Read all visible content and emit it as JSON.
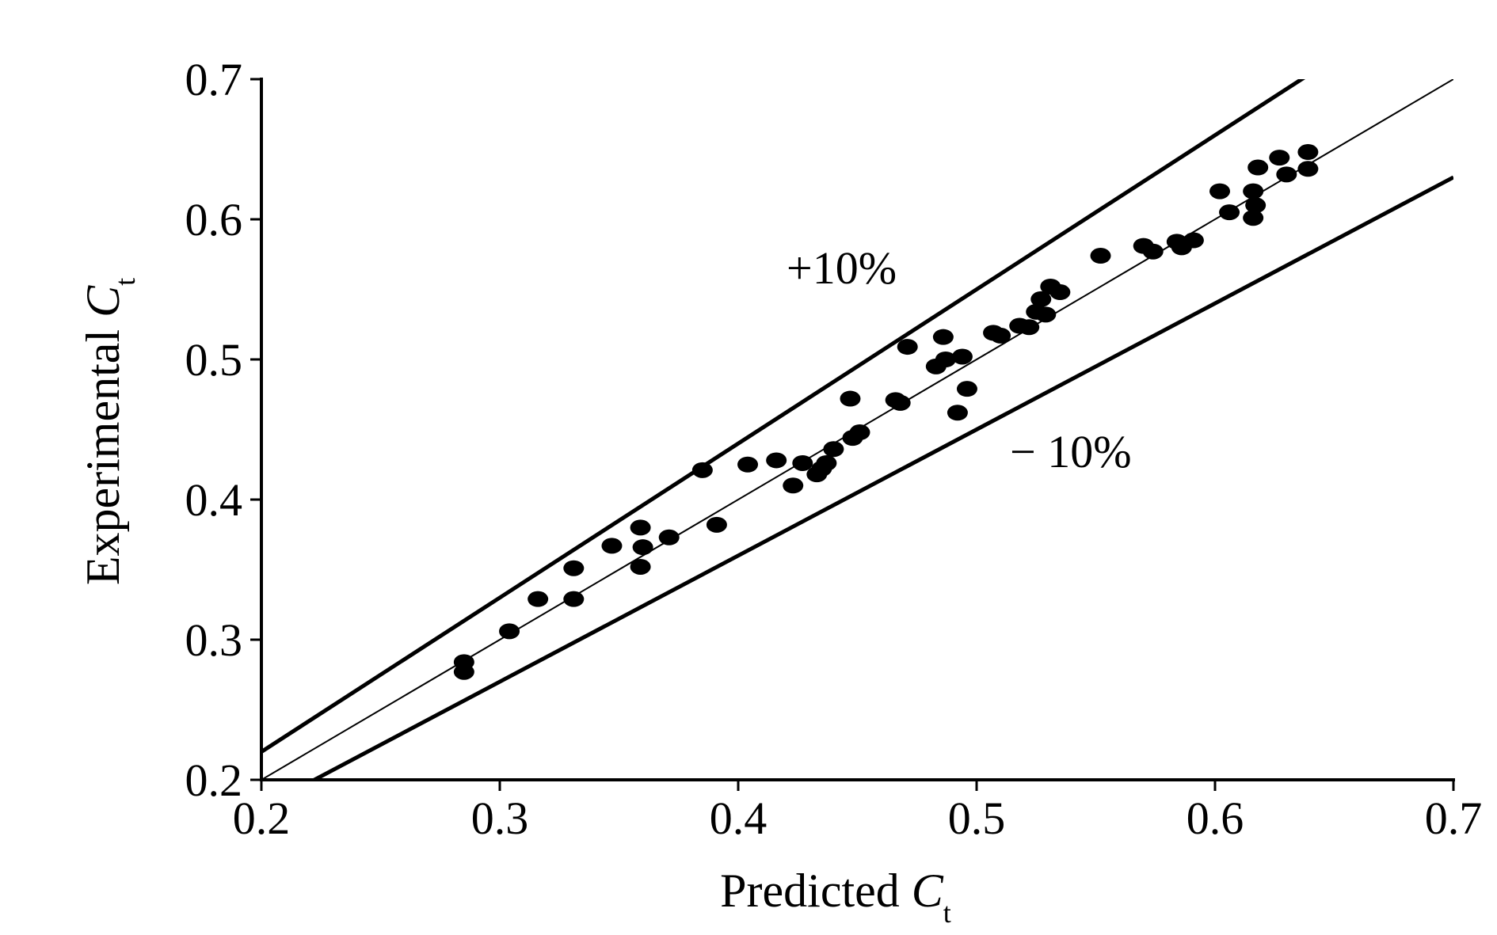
{
  "chart_data": {
    "type": "scatter",
    "title": "",
    "xlabel": {
      "main": "Predicted ",
      "var": "C",
      "sub": "t"
    },
    "ylabel": {
      "main": "Experimental ",
      "var": "C",
      "sub": "t"
    },
    "xlim": [
      0.2,
      0.7
    ],
    "ylim": [
      0.2,
      0.7
    ],
    "xticks": [
      "0.2",
      "0.3",
      "0.4",
      "0.5",
      "0.6",
      "0.7"
    ],
    "yticks": [
      "0.2",
      "0.3",
      "0.4",
      "0.5",
      "0.6",
      "0.7"
    ],
    "grid": false,
    "reference_lines": [
      {
        "label": "+10%",
        "slope": 1.1
      },
      {
        "label": "",
        "slope": 1.0
      },
      {
        "label": "− 10%",
        "slope": 0.9
      }
    ],
    "annotations": [
      "+10%",
      "− 10%"
    ],
    "points": [
      {
        "x": 0.285,
        "y": 0.284
      },
      {
        "x": 0.285,
        "y": 0.277
      },
      {
        "x": 0.304,
        "y": 0.306
      },
      {
        "x": 0.316,
        "y": 0.329
      },
      {
        "x": 0.331,
        "y": 0.351
      },
      {
        "x": 0.331,
        "y": 0.329
      },
      {
        "x": 0.347,
        "y": 0.367
      },
      {
        "x": 0.359,
        "y": 0.38
      },
      {
        "x": 0.36,
        "y": 0.366
      },
      {
        "x": 0.359,
        "y": 0.352
      },
      {
        "x": 0.371,
        "y": 0.373
      },
      {
        "x": 0.385,
        "y": 0.421
      },
      {
        "x": 0.391,
        "y": 0.382
      },
      {
        "x": 0.404,
        "y": 0.425
      },
      {
        "x": 0.416,
        "y": 0.428
      },
      {
        "x": 0.423,
        "y": 0.41
      },
      {
        "x": 0.427,
        "y": 0.426
      },
      {
        "x": 0.433,
        "y": 0.418
      },
      {
        "x": 0.435,
        "y": 0.422
      },
      {
        "x": 0.437,
        "y": 0.426
      },
      {
        "x": 0.44,
        "y": 0.436
      },
      {
        "x": 0.447,
        "y": 0.472
      },
      {
        "x": 0.448,
        "y": 0.444
      },
      {
        "x": 0.451,
        "y": 0.448
      },
      {
        "x": 0.466,
        "y": 0.471
      },
      {
        "x": 0.468,
        "y": 0.469
      },
      {
        "x": 0.471,
        "y": 0.509
      },
      {
        "x": 0.483,
        "y": 0.495
      },
      {
        "x": 0.486,
        "y": 0.516
      },
      {
        "x": 0.487,
        "y": 0.5
      },
      {
        "x": 0.492,
        "y": 0.462
      },
      {
        "x": 0.494,
        "y": 0.502
      },
      {
        "x": 0.496,
        "y": 0.479
      },
      {
        "x": 0.507,
        "y": 0.519
      },
      {
        "x": 0.51,
        "y": 0.517
      },
      {
        "x": 0.518,
        "y": 0.524
      },
      {
        "x": 0.522,
        "y": 0.523
      },
      {
        "x": 0.525,
        "y": 0.534
      },
      {
        "x": 0.527,
        "y": 0.543
      },
      {
        "x": 0.529,
        "y": 0.532
      },
      {
        "x": 0.531,
        "y": 0.552
      },
      {
        "x": 0.535,
        "y": 0.548
      },
      {
        "x": 0.552,
        "y": 0.574
      },
      {
        "x": 0.57,
        "y": 0.581
      },
      {
        "x": 0.574,
        "y": 0.577
      },
      {
        "x": 0.584,
        "y": 0.584
      },
      {
        "x": 0.586,
        "y": 0.58
      },
      {
        "x": 0.591,
        "y": 0.585
      },
      {
        "x": 0.602,
        "y": 0.62
      },
      {
        "x": 0.606,
        "y": 0.605
      },
      {
        "x": 0.616,
        "y": 0.62
      },
      {
        "x": 0.617,
        "y": 0.61
      },
      {
        "x": 0.616,
        "y": 0.601
      },
      {
        "x": 0.618,
        "y": 0.637
      },
      {
        "x": 0.627,
        "y": 0.644
      },
      {
        "x": 0.63,
        "y": 0.632
      },
      {
        "x": 0.639,
        "y": 0.648
      },
      {
        "x": 0.639,
        "y": 0.636
      }
    ]
  },
  "colors": {
    "ink": "#000000",
    "background": "#ffffff"
  }
}
